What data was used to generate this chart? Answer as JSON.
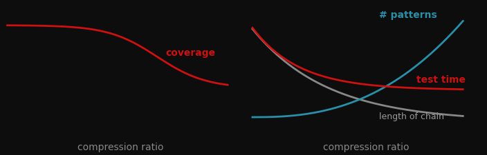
{
  "bg_color": "#0d0d0d",
  "fig_width": 7.04,
  "fig_height": 2.25,
  "dpi": 100,
  "left_xlabel": "compression ratio",
  "left_curve_color": "#cc1111",
  "left_label": "coverage",
  "left_label_color": "#cc1111",
  "right_xlabel": "compression ratio",
  "right_red_color": "#cc1111",
  "right_blue_color": "#2a8fa8",
  "right_gray_color": "#888888",
  "right_label_testtime": "test time",
  "right_label_patterns": "# patterns",
  "right_label_chain": "length of chain",
  "right_label_red_color": "#cc1111",
  "right_label_blue_color": "#2a8fa8",
  "right_label_gray_color": "#999999",
  "xlabel_color": "#888888",
  "xlabel_fontsize": 10
}
